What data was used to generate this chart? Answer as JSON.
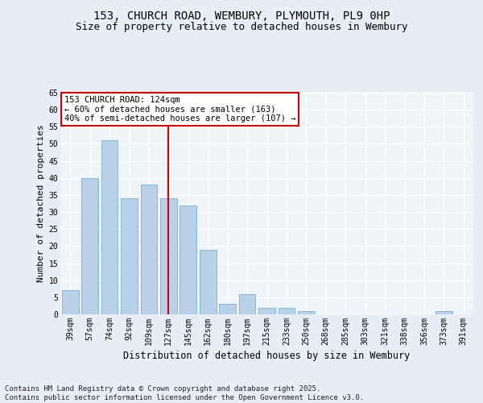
{
  "title1": "153, CHURCH ROAD, WEMBURY, PLYMOUTH, PL9 0HP",
  "title2": "Size of property relative to detached houses in Wembury",
  "xlabel": "Distribution of detached houses by size in Wembury",
  "ylabel": "Number of detached properties",
  "categories": [
    "39sqm",
    "57sqm",
    "74sqm",
    "92sqm",
    "109sqm",
    "127sqm",
    "145sqm",
    "162sqm",
    "180sqm",
    "197sqm",
    "215sqm",
    "233sqm",
    "250sqm",
    "268sqm",
    "285sqm",
    "303sqm",
    "321sqm",
    "338sqm",
    "356sqm",
    "373sqm",
    "391sqm"
  ],
  "values": [
    7,
    40,
    51,
    34,
    38,
    34,
    32,
    19,
    3,
    6,
    2,
    2,
    1,
    0,
    0,
    0,
    0,
    0,
    0,
    1,
    0
  ],
  "bar_color": "#b8d0e8",
  "bar_edge_color": "#7aafd4",
  "vline_x": 5,
  "vline_color": "#cc0000",
  "annotation_text": "153 CHURCH ROAD: 124sqm\n← 60% of detached houses are smaller (163)\n40% of semi-detached houses are larger (107) →",
  "annotation_box_color": "#ffffff",
  "annotation_box_edge": "#cc0000",
  "ylim": [
    0,
    65
  ],
  "yticks": [
    0,
    5,
    10,
    15,
    20,
    25,
    30,
    35,
    40,
    45,
    50,
    55,
    60,
    65
  ],
  "footnote": "Contains HM Land Registry data © Crown copyright and database right 2025.\nContains public sector information licensed under the Open Government Licence v3.0.",
  "bg_color": "#e8eef5",
  "plot_bg_color": "#f0f4f8",
  "grid_color": "#ffffff",
  "title_fontsize": 10,
  "subtitle_fontsize": 9,
  "axis_label_fontsize": 8,
  "tick_fontsize": 7,
  "footnote_fontsize": 6.5,
  "annotation_fontsize": 7.5
}
